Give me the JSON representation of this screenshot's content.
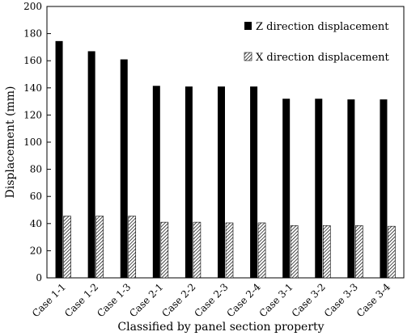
{
  "chart_data": {
    "type": "bar",
    "title": "",
    "xlabel": "Classified by panel section property",
    "ylabel": "Displacement (mm)",
    "ylim": [
      0,
      200
    ],
    "yticks": [
      0,
      20,
      40,
      60,
      80,
      100,
      120,
      140,
      160,
      180,
      200
    ],
    "grid": false,
    "legend_position": "top-right",
    "categories": [
      "Case 1-1",
      "Case 1-2",
      "Case 1-3",
      "Case 2-1",
      "Case 2-2",
      "Case 2-3",
      "Case 2-4",
      "Case 3-1",
      "Case 3-2",
      "Case 3-3",
      "Case 3-4"
    ],
    "series": [
      {
        "name": "Z direction displacement",
        "fill": "solid-black",
        "values": [
          174.5,
          167,
          161,
          141.5,
          141,
          141,
          141,
          132,
          132,
          131.5,
          131.5
        ]
      },
      {
        "name": "X direction displacement",
        "fill": "diagonal-hatch",
        "values": [
          45.5,
          45.5,
          45.5,
          41,
          41,
          40.5,
          40.5,
          38.5,
          38.5,
          38.5,
          38
        ]
      }
    ]
  }
}
